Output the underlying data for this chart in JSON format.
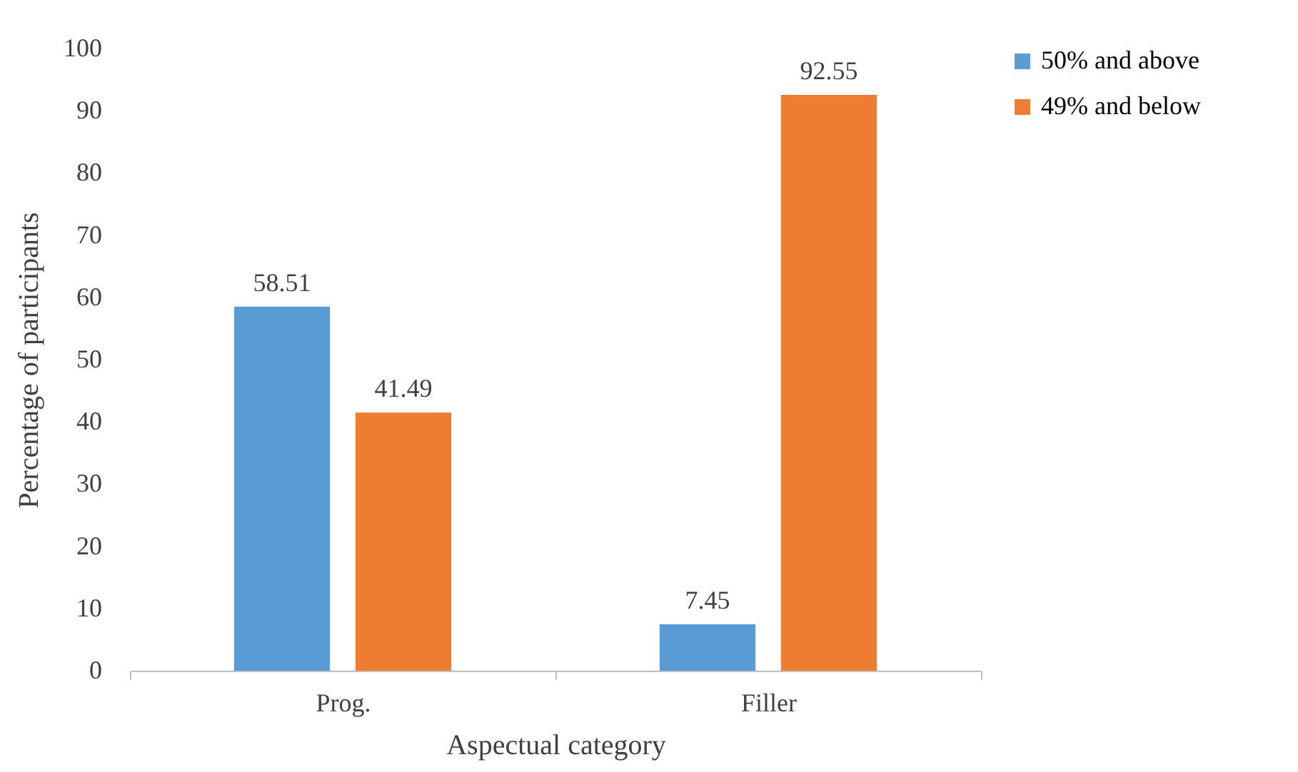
{
  "chart_data": {
    "type": "bar",
    "xlabel": "Aspectual category",
    "ylabel": "Percentage of participants",
    "categories": [
      "Prog.",
      "Filler"
    ],
    "series": [
      {
        "name": "50% and above",
        "color": "#5b9bd5",
        "values": [
          58.51,
          7.45
        ]
      },
      {
        "name": "49% and below",
        "color": "#ed7d31",
        "values": [
          41.49,
          92.55
        ]
      }
    ],
    "ylim": [
      0,
      100
    ],
    "yticks": [
      0,
      10,
      20,
      30,
      40,
      50,
      60,
      70,
      80,
      90,
      100
    ],
    "grid": false,
    "legend": "right",
    "data_labels": true
  }
}
